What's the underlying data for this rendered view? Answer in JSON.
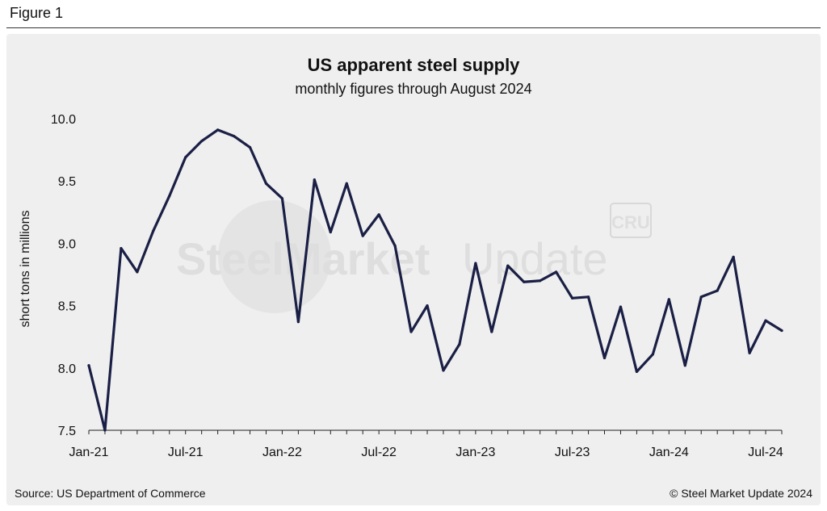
{
  "figure_label": "Figure 1",
  "footer": {
    "source": "Source: US Department of Commerce",
    "copyright": "© Steel Market Update 2024"
  },
  "watermark": {
    "left": "SteelMarket",
    "right": "Update",
    "badge": "CRU"
  },
  "chart_data": {
    "type": "line",
    "title": "US apparent steel supply",
    "subtitle": "monthly figures through August 2024",
    "ylabel": "short tons in millions",
    "xlabel": "",
    "ylim": [
      7.5,
      10.0
    ],
    "yticks": [
      7.5,
      8.0,
      8.5,
      9.0,
      9.5,
      10.0
    ],
    "ytick_labels": [
      "7.5",
      "8.0",
      "8.5",
      "9.0",
      "9.5",
      "10.0"
    ],
    "xticks": [
      {
        "index": 0,
        "label": "Jan-21"
      },
      {
        "index": 6,
        "label": "Jul-21"
      },
      {
        "index": 12,
        "label": "Jan-22"
      },
      {
        "index": 18,
        "label": "Jul-22"
      },
      {
        "index": 24,
        "label": "Jan-23"
      },
      {
        "index": 30,
        "label": "Jul-23"
      },
      {
        "index": 36,
        "label": "Jan-24"
      },
      {
        "index": 42,
        "label": "Jul-24"
      }
    ],
    "series": [
      {
        "name": "US apparent steel supply",
        "color": "#1a1f45",
        "values": [
          8.02,
          7.5,
          8.96,
          8.77,
          9.1,
          9.38,
          9.69,
          9.82,
          9.91,
          9.86,
          9.77,
          9.48,
          9.36,
          8.37,
          9.51,
          9.09,
          9.48,
          9.06,
          9.23,
          8.98,
          8.29,
          8.5,
          7.98,
          8.19,
          8.84,
          8.29,
          8.82,
          8.69,
          8.7,
          8.77,
          8.56,
          8.57,
          8.08,
          8.49,
          7.97,
          8.11,
          8.55,
          8.02,
          8.57,
          8.62,
          8.89,
          8.12,
          8.38,
          8.3
        ]
      }
    ]
  }
}
